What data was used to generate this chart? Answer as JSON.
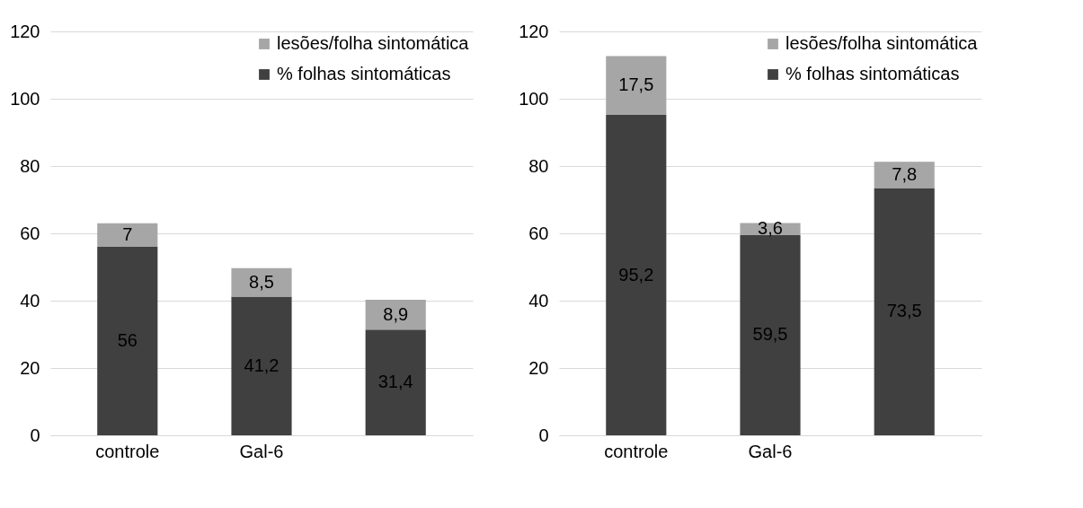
{
  "chart_data": [
    {
      "type": "bar",
      "stacked": true,
      "categories": [
        "controle",
        "Gal-6",
        null
      ],
      "series": [
        {
          "name": "% folhas sintomáticas",
          "color": "#404040",
          "values": [
            56,
            41.2,
            31.4
          ],
          "value_labels": [
            "56",
            "41,2",
            "31,4"
          ]
        },
        {
          "name": "lesões/folha sintomática",
          "color": "#a6a6a6",
          "values": [
            7,
            8.5,
            8.9
          ],
          "value_labels": [
            "7",
            "8,5",
            "8,9"
          ]
        }
      ],
      "ylim": [
        0,
        120
      ],
      "yticks": [
        0,
        20,
        40,
        60,
        80,
        100,
        120
      ],
      "grid": "y",
      "legend": "top right"
    },
    {
      "type": "bar",
      "stacked": true,
      "categories": [
        "controle",
        "Gal-6",
        null
      ],
      "series": [
        {
          "name": "% folhas sintomáticas",
          "color": "#404040",
          "values": [
            95.2,
            59.5,
            73.5
          ],
          "value_labels": [
            "95,2",
            "59,5",
            "73,5"
          ]
        },
        {
          "name": "lesões/folha sintomática",
          "color": "#a6a6a6",
          "values": [
            17.5,
            3.6,
            7.8
          ],
          "value_labels": [
            "17,5",
            "3,6",
            "7,8"
          ]
        }
      ],
      "ylim": [
        0,
        120
      ],
      "yticks": [
        0,
        20,
        40,
        60,
        80,
        100,
        120
      ],
      "grid": "y",
      "legend": "top right"
    }
  ]
}
